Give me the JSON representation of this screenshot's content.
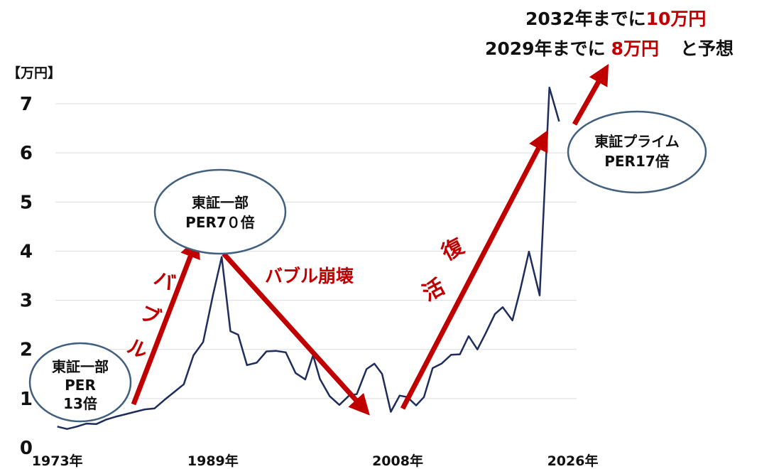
{
  "colors": {
    "line": "#1f2d5c",
    "arrow": "#c00000",
    "accent_red": "#c00000",
    "ellipse_stroke": "#41607f",
    "grid": "#dcdcdc",
    "text": "#111111"
  },
  "header": {
    "line1_prefix": "2032年までに",
    "line1_value": "10万円",
    "line2_prefix": "2029年までに",
    "line2_value": "8万円",
    "line2_suffix": "と予想"
  },
  "annotations": {
    "left_bubble": [
      "東証一部",
      "PER",
      "13倍"
    ],
    "peak_bubble": [
      "東証一部",
      "PER7０倍"
    ],
    "right_bubble": [
      "東証プライム",
      "PER17倍"
    ],
    "bubble_label": [
      "バ",
      "ブ",
      "ル"
    ],
    "collapse_label": "バブル崩壊",
    "recovery_label": [
      "復",
      "活"
    ]
  },
  "chart_data": {
    "type": "line",
    "ylabel": "【万円】",
    "ylim": [
      0,
      7
    ],
    "y_ticks": [
      0,
      1,
      2,
      3,
      4,
      5,
      6,
      7
    ],
    "grid": true,
    "x_tick_labels": [
      {
        "year": 1973,
        "label": "1973年"
      },
      {
        "year": 1989,
        "label": "1989年"
      },
      {
        "year": 2008,
        "label": "2008年"
      },
      {
        "year": 2026,
        "label": "2026年"
      }
    ],
    "xlim": [
      1972.8,
      2026.4
    ],
    "series": [
      {
        "points": [
          [
            1973.0,
            0.43
          ],
          [
            1974.0,
            0.38
          ],
          [
            1975.0,
            0.43
          ],
          [
            1976.0,
            0.49
          ],
          [
            1977.0,
            0.48
          ],
          [
            1978.0,
            0.57
          ],
          [
            1979.0,
            0.63
          ],
          [
            1980.0,
            0.68
          ],
          [
            1981.0,
            0.73
          ],
          [
            1982.0,
            0.78
          ],
          [
            1983.0,
            0.8
          ],
          [
            1984.0,
            0.97
          ],
          [
            1985.0,
            1.13
          ],
          [
            1986.0,
            1.29
          ],
          [
            1987.0,
            1.88
          ],
          [
            1988.0,
            2.15
          ],
          [
            1989.0,
            3.1
          ],
          [
            1989.9,
            3.88
          ],
          [
            1990.8,
            2.37
          ],
          [
            1991.6,
            2.3
          ],
          [
            1992.5,
            1.68
          ],
          [
            1993.5,
            1.73
          ],
          [
            1994.5,
            1.96
          ],
          [
            1995.5,
            1.97
          ],
          [
            1996.5,
            1.94
          ],
          [
            1997.5,
            1.52
          ],
          [
            1998.5,
            1.39
          ],
          [
            1999.3,
            1.88
          ],
          [
            2000.0,
            1.4
          ],
          [
            2001.0,
            1.05
          ],
          [
            2002.0,
            0.87
          ],
          [
            2003.0,
            1.06
          ],
          [
            2003.8,
            1.09
          ],
          [
            2004.8,
            1.6
          ],
          [
            2005.6,
            1.71
          ],
          [
            2006.4,
            1.5
          ],
          [
            2007.3,
            0.73
          ],
          [
            2008.2,
            1.06
          ],
          [
            2009.0,
            1.03
          ],
          [
            2009.9,
            0.86
          ],
          [
            2010.7,
            1.03
          ],
          [
            2011.6,
            1.62
          ],
          [
            2012.5,
            1.71
          ],
          [
            2013.5,
            1.89
          ],
          [
            2014.4,
            1.9
          ],
          [
            2015.3,
            2.27
          ],
          [
            2016.2,
            2.0
          ],
          [
            2017.0,
            2.31
          ],
          [
            2018.0,
            2.72
          ],
          [
            2018.8,
            2.86
          ],
          [
            2019.8,
            2.59
          ],
          [
            2020.6,
            3.21
          ],
          [
            2021.5,
            3.99
          ],
          [
            2022.6,
            3.1
          ],
          [
            2023.6,
            7.33
          ],
          [
            2024.6,
            6.64
          ]
        ]
      }
    ]
  }
}
